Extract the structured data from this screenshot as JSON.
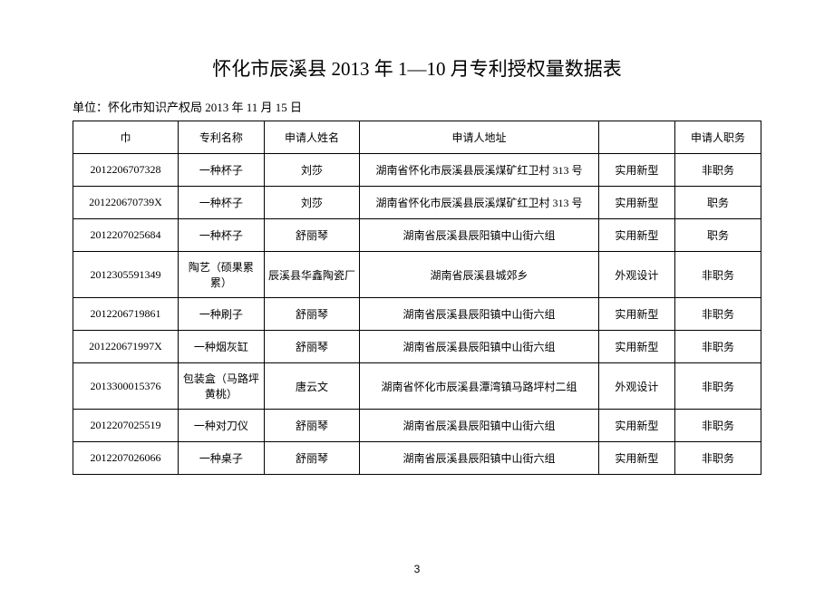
{
  "title": "怀化市辰溪县 2013 年 1—10 月专利授权量数据表",
  "subtitle": "单位：怀化市知识产权局 2013 年 11 月 15 日",
  "columns": [
    "巾",
    "专利名称",
    "申请人姓名",
    "申请人地址",
    "",
    "申请人职务"
  ],
  "rows": [
    [
      "2012206707328",
      "一种杯子",
      "刘莎",
      "湖南省怀化市辰溪县辰溪煤矿红卫村 313 号",
      "实用新型",
      "非职务"
    ],
    [
      "201220670739X",
      "一种杯子",
      "刘莎",
      "湖南省怀化市辰溪县辰溪煤矿红卫村 313 号",
      "实用新型",
      "职务"
    ],
    [
      "2012207025684",
      "一种杯子",
      "舒丽琴",
      "湖南省辰溪县辰阳镇中山街六组",
      "实用新型",
      "职务"
    ],
    [
      "2012305591349",
      "陶艺（硕果累累）",
      "辰溪县华鑫陶瓷厂",
      "湖南省辰溪县城郊乡",
      "外观设计",
      "非职务"
    ],
    [
      "2012206719861",
      "一种刷子",
      "舒丽琴",
      "湖南省辰溪县辰阳镇中山街六组",
      "实用新型",
      "非职务"
    ],
    [
      "201220671997X",
      "一种烟灰缸",
      "舒丽琴",
      "湖南省辰溪县辰阳镇中山街六组",
      "实用新型",
      "非职务"
    ],
    [
      "2013300015376",
      "包装盒（马路坪黄桃）",
      "唐云文",
      "湖南省怀化市辰溪县潭湾镇马路坪村二组",
      "外观设计",
      "非职务"
    ],
    [
      "2012207025519",
      "一种对刀仪",
      "舒丽琴",
      "湖南省辰溪县辰阳镇中山街六组",
      "实用新型",
      "非职务"
    ],
    [
      "2012207026066",
      "一种桌子",
      "舒丽琴",
      "湖南省辰溪县辰阳镇中山街六组",
      "实用新型",
      "非职务"
    ]
  ],
  "page_number": "3"
}
